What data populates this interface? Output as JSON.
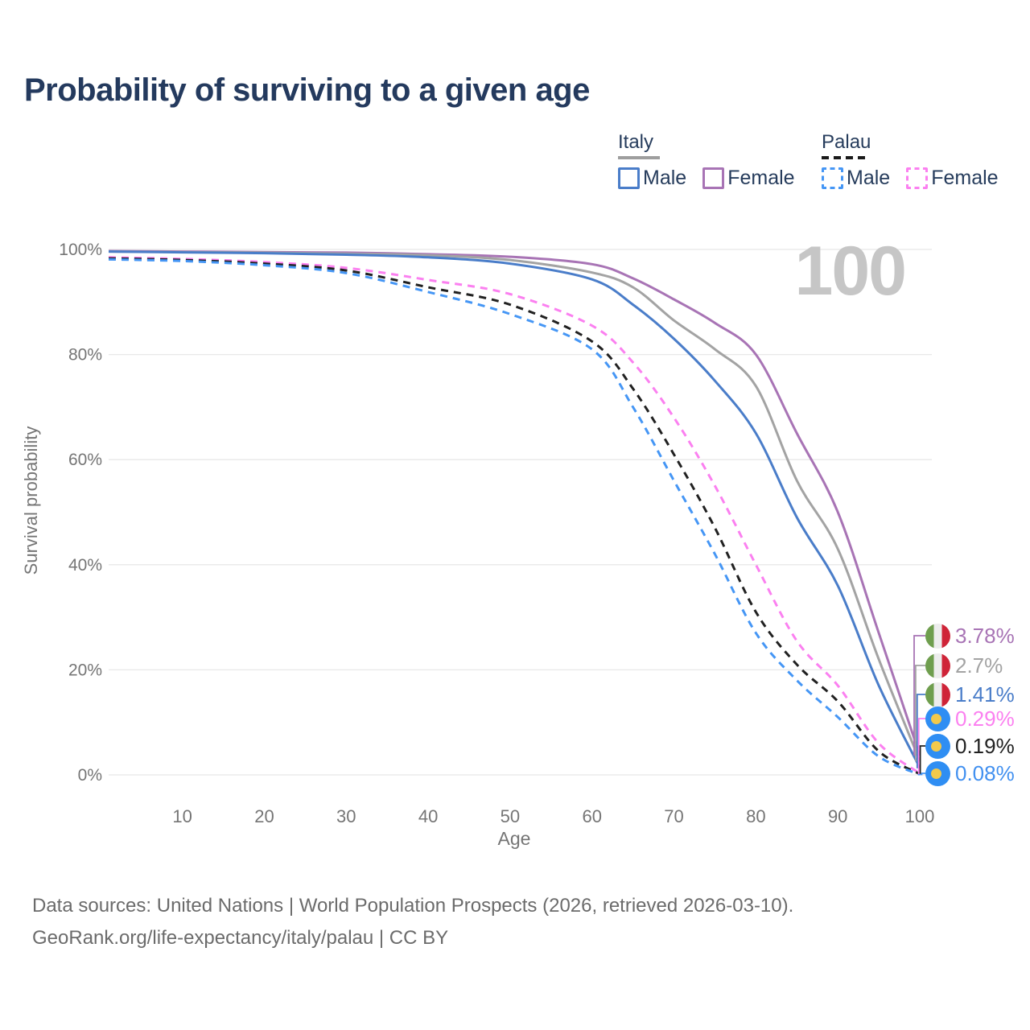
{
  "header": {
    "title": "Probability of surviving to a given age"
  },
  "legend": {
    "groups": [
      {
        "label": "Italy",
        "line_style": "solid",
        "underline_color": "#9e9e9e",
        "items": [
          {
            "label": "Male",
            "color": "#4a7dc9"
          },
          {
            "label": "Female",
            "color": "#a874b5"
          }
        ]
      },
      {
        "label": "Palau",
        "line_style": "dashed",
        "underline_color": "#1a1a1a",
        "items": [
          {
            "label": "Male",
            "color": "#4596f5"
          },
          {
            "label": "Female",
            "color": "#fb80f0"
          }
        ]
      }
    ]
  },
  "plot": {
    "hover_age_indicator": "100",
    "y_axis": {
      "title": "Survival probability",
      "ticks": [
        "0%",
        "20%",
        "40%",
        "60%",
        "80%",
        "100%"
      ]
    },
    "x_axis": {
      "title": "Age",
      "ticks": [
        10,
        20,
        30,
        40,
        50,
        60,
        70,
        80,
        90,
        100
      ]
    }
  },
  "chart_data": {
    "type": "line",
    "title": "Probability of surviving to a given age",
    "xlabel": "Age",
    "ylabel": "Survival probability",
    "xlim": [
      1,
      100
    ],
    "ylim": [
      0,
      100
    ],
    "grid": true,
    "legend_position": "top-right",
    "x": [
      1,
      10,
      20,
      30,
      40,
      50,
      60,
      65,
      70,
      75,
      80,
      85,
      90,
      95,
      100
    ],
    "series": [
      {
        "name": "Italy Female",
        "country": "Italy",
        "sex": "Female",
        "color": "#a874b5",
        "dash": "solid",
        "values": [
          99.7,
          99.6,
          99.5,
          99.4,
          99.1,
          98.6,
          97.2,
          94.5,
          90.5,
          86,
          80,
          65,
          50,
          27,
          3.78
        ],
        "end_label": "3.78%"
      },
      {
        "name": "Italy Both sexes",
        "country": "Italy",
        "sex": "Both",
        "color": "#a3a3a3",
        "dash": "solid",
        "values": [
          99.6,
          99.5,
          99.4,
          99.2,
          98.9,
          98.0,
          95.6,
          92.8,
          86.5,
          81,
          74,
          56,
          43,
          22,
          2.7
        ],
        "end_label": "2.7%"
      },
      {
        "name": "Italy Male",
        "country": "Italy",
        "sex": "Male",
        "color": "#4a7dc9",
        "dash": "solid",
        "values": [
          99.6,
          99.45,
          99.3,
          99.0,
          98.5,
          97.3,
          94.3,
          89.5,
          83,
          75,
          65,
          49,
          36,
          17,
          1.41
        ],
        "end_label": "1.41%"
      },
      {
        "name": "Palau Female",
        "country": "Palau",
        "sex": "Female",
        "color": "#fb80f0",
        "dash": "dashed",
        "values": [
          98.5,
          98.2,
          97.6,
          96.5,
          94.2,
          91.5,
          85.5,
          78.5,
          68,
          55,
          40,
          25.5,
          17,
          6,
          0.29
        ],
        "end_label": "0.29%"
      },
      {
        "name": "Palau Both sexes",
        "country": "Palau",
        "sex": "Both",
        "color": "#212121",
        "dash": "dashed",
        "values": [
          98.3,
          98.0,
          97.3,
          96.0,
          92.8,
          89.5,
          82.5,
          73.5,
          61,
          47,
          31,
          21,
          14,
          4.5,
          0.19
        ],
        "end_label": "0.19%"
      },
      {
        "name": "Palau Male",
        "country": "Palau",
        "sex": "Male",
        "color": "#4596f5",
        "dash": "dashed",
        "values": [
          98.1,
          97.8,
          97.0,
          95.5,
          91.9,
          87.7,
          81,
          70,
          56,
          42,
          27,
          18,
          11,
          3.5,
          0.08
        ],
        "end_label": "0.08%"
      }
    ]
  },
  "end_labels": [
    {
      "flag": "italy-flag",
      "value": "3.78%",
      "color": "#a874b5"
    },
    {
      "flag": "italy-flag",
      "value": "2.7%",
      "color": "#a3a3a3"
    },
    {
      "flag": "italy-flag",
      "value": "1.41%",
      "color": "#4a7dc9"
    },
    {
      "flag": "palau-flag",
      "value": "0.29%",
      "color": "#fb80f0"
    },
    {
      "flag": "palau-flag",
      "value": "0.19%",
      "color": "#212121"
    },
    {
      "flag": "palau-flag",
      "value": "0.08%",
      "color": "#4190f0"
    }
  ],
  "footer": {
    "line1": "Data sources: United Nations | World Population Prospects (2026, retrieved 2026-03-10).",
    "line2": "GeoRank.org/life-expectancy/italy/palau | CC BY"
  },
  "colors": {
    "title": "#243a5e",
    "axis_text": "#757575",
    "grid": "#e8e8e8",
    "watermark": "#c6c6c6",
    "footer_text": "#6b6b6b",
    "legend_text": "#263c5c"
  }
}
